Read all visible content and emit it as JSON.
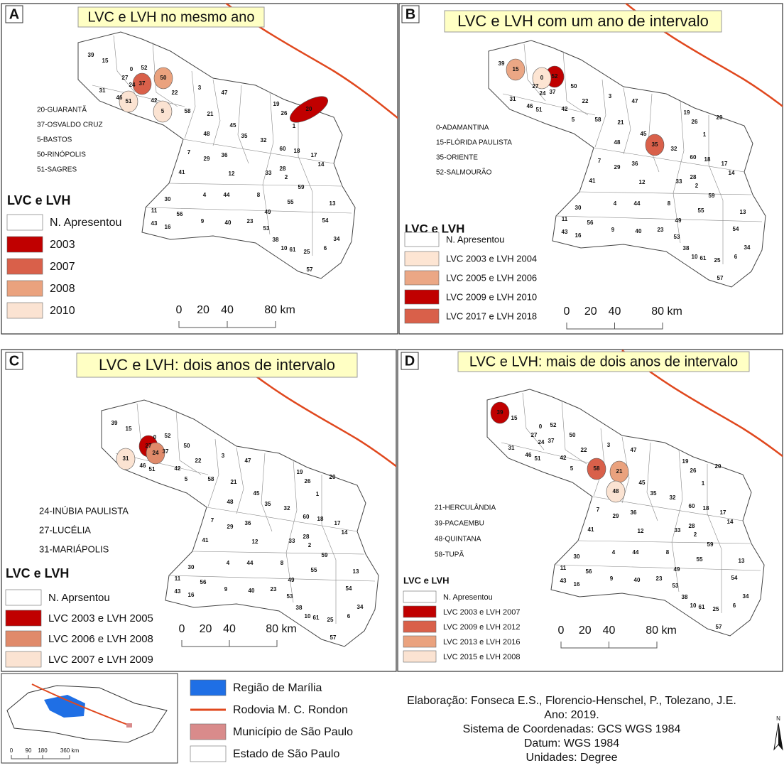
{
  "municipalities": [
    "39",
    "15",
    "52",
    "27",
    "0",
    "50",
    "24",
    "37",
    "31",
    "46",
    "51",
    "42",
    "22",
    "3",
    "47",
    "5",
    "58",
    "21",
    "45",
    "19",
    "26",
    "20",
    "1",
    "35",
    "32",
    "48",
    "7",
    "29",
    "36",
    "60",
    "18",
    "17",
    "14",
    "12",
    "28",
    "2",
    "33",
    "41",
    "59",
    "30",
    "4",
    "44",
    "8",
    "55",
    "13",
    "11",
    "56",
    "9",
    "40",
    "23",
    "49",
    "43",
    "16",
    "53",
    "54",
    "38",
    "10",
    "61",
    "25",
    "6",
    "34",
    "57"
  ],
  "panels": [
    {
      "letter": "A",
      "title": "LVC e LVH no mesmo ano",
      "names": [
        "20-GUARANTÃ",
        "37-OSVALDO CRUZ",
        "5-BASTOS",
        "50-RINÓPOLIS",
        "51-SAGRES"
      ],
      "legend_title": "LVC e LVH",
      "legend": [
        {
          "label": "N. Apresentou",
          "color": "#ffffff"
        },
        {
          "label": "2003",
          "color": "#c00000"
        },
        {
          "label": "2007",
          "color": "#d9604a"
        },
        {
          "label": "2008",
          "color": "#eaa27e"
        },
        {
          "label": "2010",
          "color": "#fbe3d2"
        }
      ],
      "scale": [
        "0",
        "20",
        "40",
        "80 km"
      ],
      "highlighted": [
        {
          "label": "20",
          "color": "#c00000"
        },
        {
          "label": "37",
          "color": "#d9604a"
        },
        {
          "label": "50",
          "color": "#eaa27e"
        },
        {
          "label": "51",
          "color": "#fbe3d2"
        },
        {
          "label": "5",
          "color": "#fbe3d2"
        }
      ]
    },
    {
      "letter": "B",
      "title": "LVC e LVH com um ano de intervalo",
      "names": [
        "0-ADAMANTINA",
        "15-FLÓRIDA PAULISTA",
        "35-ORIENTE",
        "52-SALMOURÃO"
      ],
      "legend_title": "LVC e  LVH",
      "legend": [
        {
          "label": "N. Apresentou",
          "color": "#ffffff"
        },
        {
          "label": "LVC 2003 e LVH 2004",
          "color": "#fde5d3"
        },
        {
          "label": "LVC 2005 e LVH 2006",
          "color": "#eba785"
        },
        {
          "label": "LVC 2009 e LVH 2010",
          "color": "#c00000"
        },
        {
          "label": "LVC 2017 e LVH 2018",
          "color": "#d9604a"
        }
      ],
      "scale": [
        "0",
        "20",
        "40",
        "80 km"
      ],
      "highlighted": [
        {
          "label": "52",
          "color": "#c00000"
        },
        {
          "label": "15",
          "color": "#eba785"
        },
        {
          "label": "0",
          "color": "#fde5d3"
        },
        {
          "label": "35",
          "color": "#d9604a"
        }
      ]
    },
    {
      "letter": "C",
      "title": "LVC e LVH: dois anos de intervalo",
      "names": [
        "24-INÚBIA PAULISTA",
        "27-LUCÉLIA",
        "31-MARIÁPOLIS"
      ],
      "legend_title": "LVC e LVH",
      "legend": [
        {
          "label": "N. Aprsentou",
          "color": "#ffffff"
        },
        {
          "label": "LVC 2003 e LVH 2005",
          "color": "#c00000"
        },
        {
          "label": "LVC 2006 e LVH 2008",
          "color": "#e08a6a"
        },
        {
          "label": "LVC 2007 e LVH 2009",
          "color": "#fbe3d2"
        }
      ],
      "scale": [
        "0",
        "20",
        "40",
        "80 km"
      ],
      "highlighted": [
        {
          "label": "27",
          "color": "#c00000"
        },
        {
          "label": "24",
          "color": "#e08a6a"
        },
        {
          "label": "31",
          "color": "#fbe3d2"
        }
      ]
    },
    {
      "letter": "D",
      "title": "LVC e LVH: mais de dois anos de intervalo",
      "names": [
        "21-HERCULÂNDIA",
        "39-PACAEMBU",
        "48-QUINTANA",
        "58-TUPÃ"
      ],
      "legend_title": "LVC e LVH",
      "legend": [
        {
          "label": "N. Apresentou",
          "color": "#ffffff"
        },
        {
          "label": "LVC 2003 e LVH 2007",
          "color": "#c00000"
        },
        {
          "label": "LVC 2009 e LVH 2012",
          "color": "#d9604a"
        },
        {
          "label": "LVC 2013 e LVH 2016",
          "color": "#eaa27e"
        },
        {
          "label": "LVC 2015 e LVH 2008",
          "color": "#fbe3d2"
        }
      ],
      "scale": [
        "0",
        "20",
        "40",
        "80 km"
      ],
      "highlighted": [
        {
          "label": "39",
          "color": "#c00000"
        },
        {
          "label": "58",
          "color": "#d9604a"
        },
        {
          "label": "21",
          "color": "#eaa27e"
        },
        {
          "label": "48",
          "color": "#fbe3d2"
        }
      ]
    }
  ],
  "inset_scale": [
    "0",
    "90",
    "180",
    "360 km"
  ],
  "map_legend": [
    {
      "label": "Região de Marília",
      "color": "#1f6fe5"
    },
    {
      "label": "Rodovia M. C. Rondon",
      "color": "#e0481e"
    },
    {
      "label": "Município de São Paulo",
      "color": "#d98b8b"
    },
    {
      "label": "Estado de São Paulo",
      "color": "#ffffff"
    }
  ],
  "credits": [
    "Elaboração: Fonseca E.S., Florencio-Henschel, P., Tolezano, J.E.",
    "Ano: 2019.",
    "Sistema de Coordenadas: GCS WGS 1984",
    "Datum: WGS 1984",
    "Unidades: Degree"
  ],
  "north": "N"
}
